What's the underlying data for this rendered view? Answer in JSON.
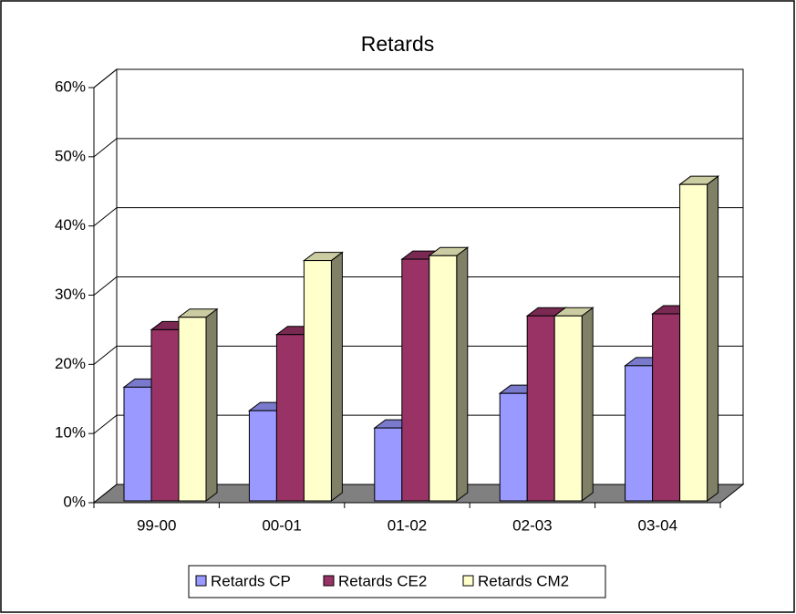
{
  "chart_data": {
    "type": "bar3d",
    "title": "Retards",
    "categories": [
      "99-00",
      "00-01",
      "01-02",
      "02-03",
      "03-04"
    ],
    "series": [
      {
        "name": "Retards CP",
        "color": "#9999ff",
        "values": [
          16.7,
          13.3,
          10.8,
          15.8,
          19.8
        ]
      },
      {
        "name": "Retards CE2",
        "color": "#993366",
        "values": [
          25,
          24.3,
          35.2,
          27,
          27.3
        ]
      },
      {
        "name": "Retards CM2",
        "color": "#ffffcc",
        "values": [
          26.8,
          35,
          35.7,
          27,
          46
        ]
      }
    ],
    "ylim": [
      0,
      60
    ],
    "yticks": [
      {
        "value": 0,
        "label": "0%"
      },
      {
        "value": 10,
        "label": "10%"
      },
      {
        "value": 20,
        "label": "20%"
      },
      {
        "value": 30,
        "label": "30%"
      },
      {
        "value": 40,
        "label": "40%"
      },
      {
        "value": 50,
        "label": "50%"
      },
      {
        "value": 60,
        "label": "60%"
      }
    ],
    "grid": true,
    "legend": "bottom"
  }
}
